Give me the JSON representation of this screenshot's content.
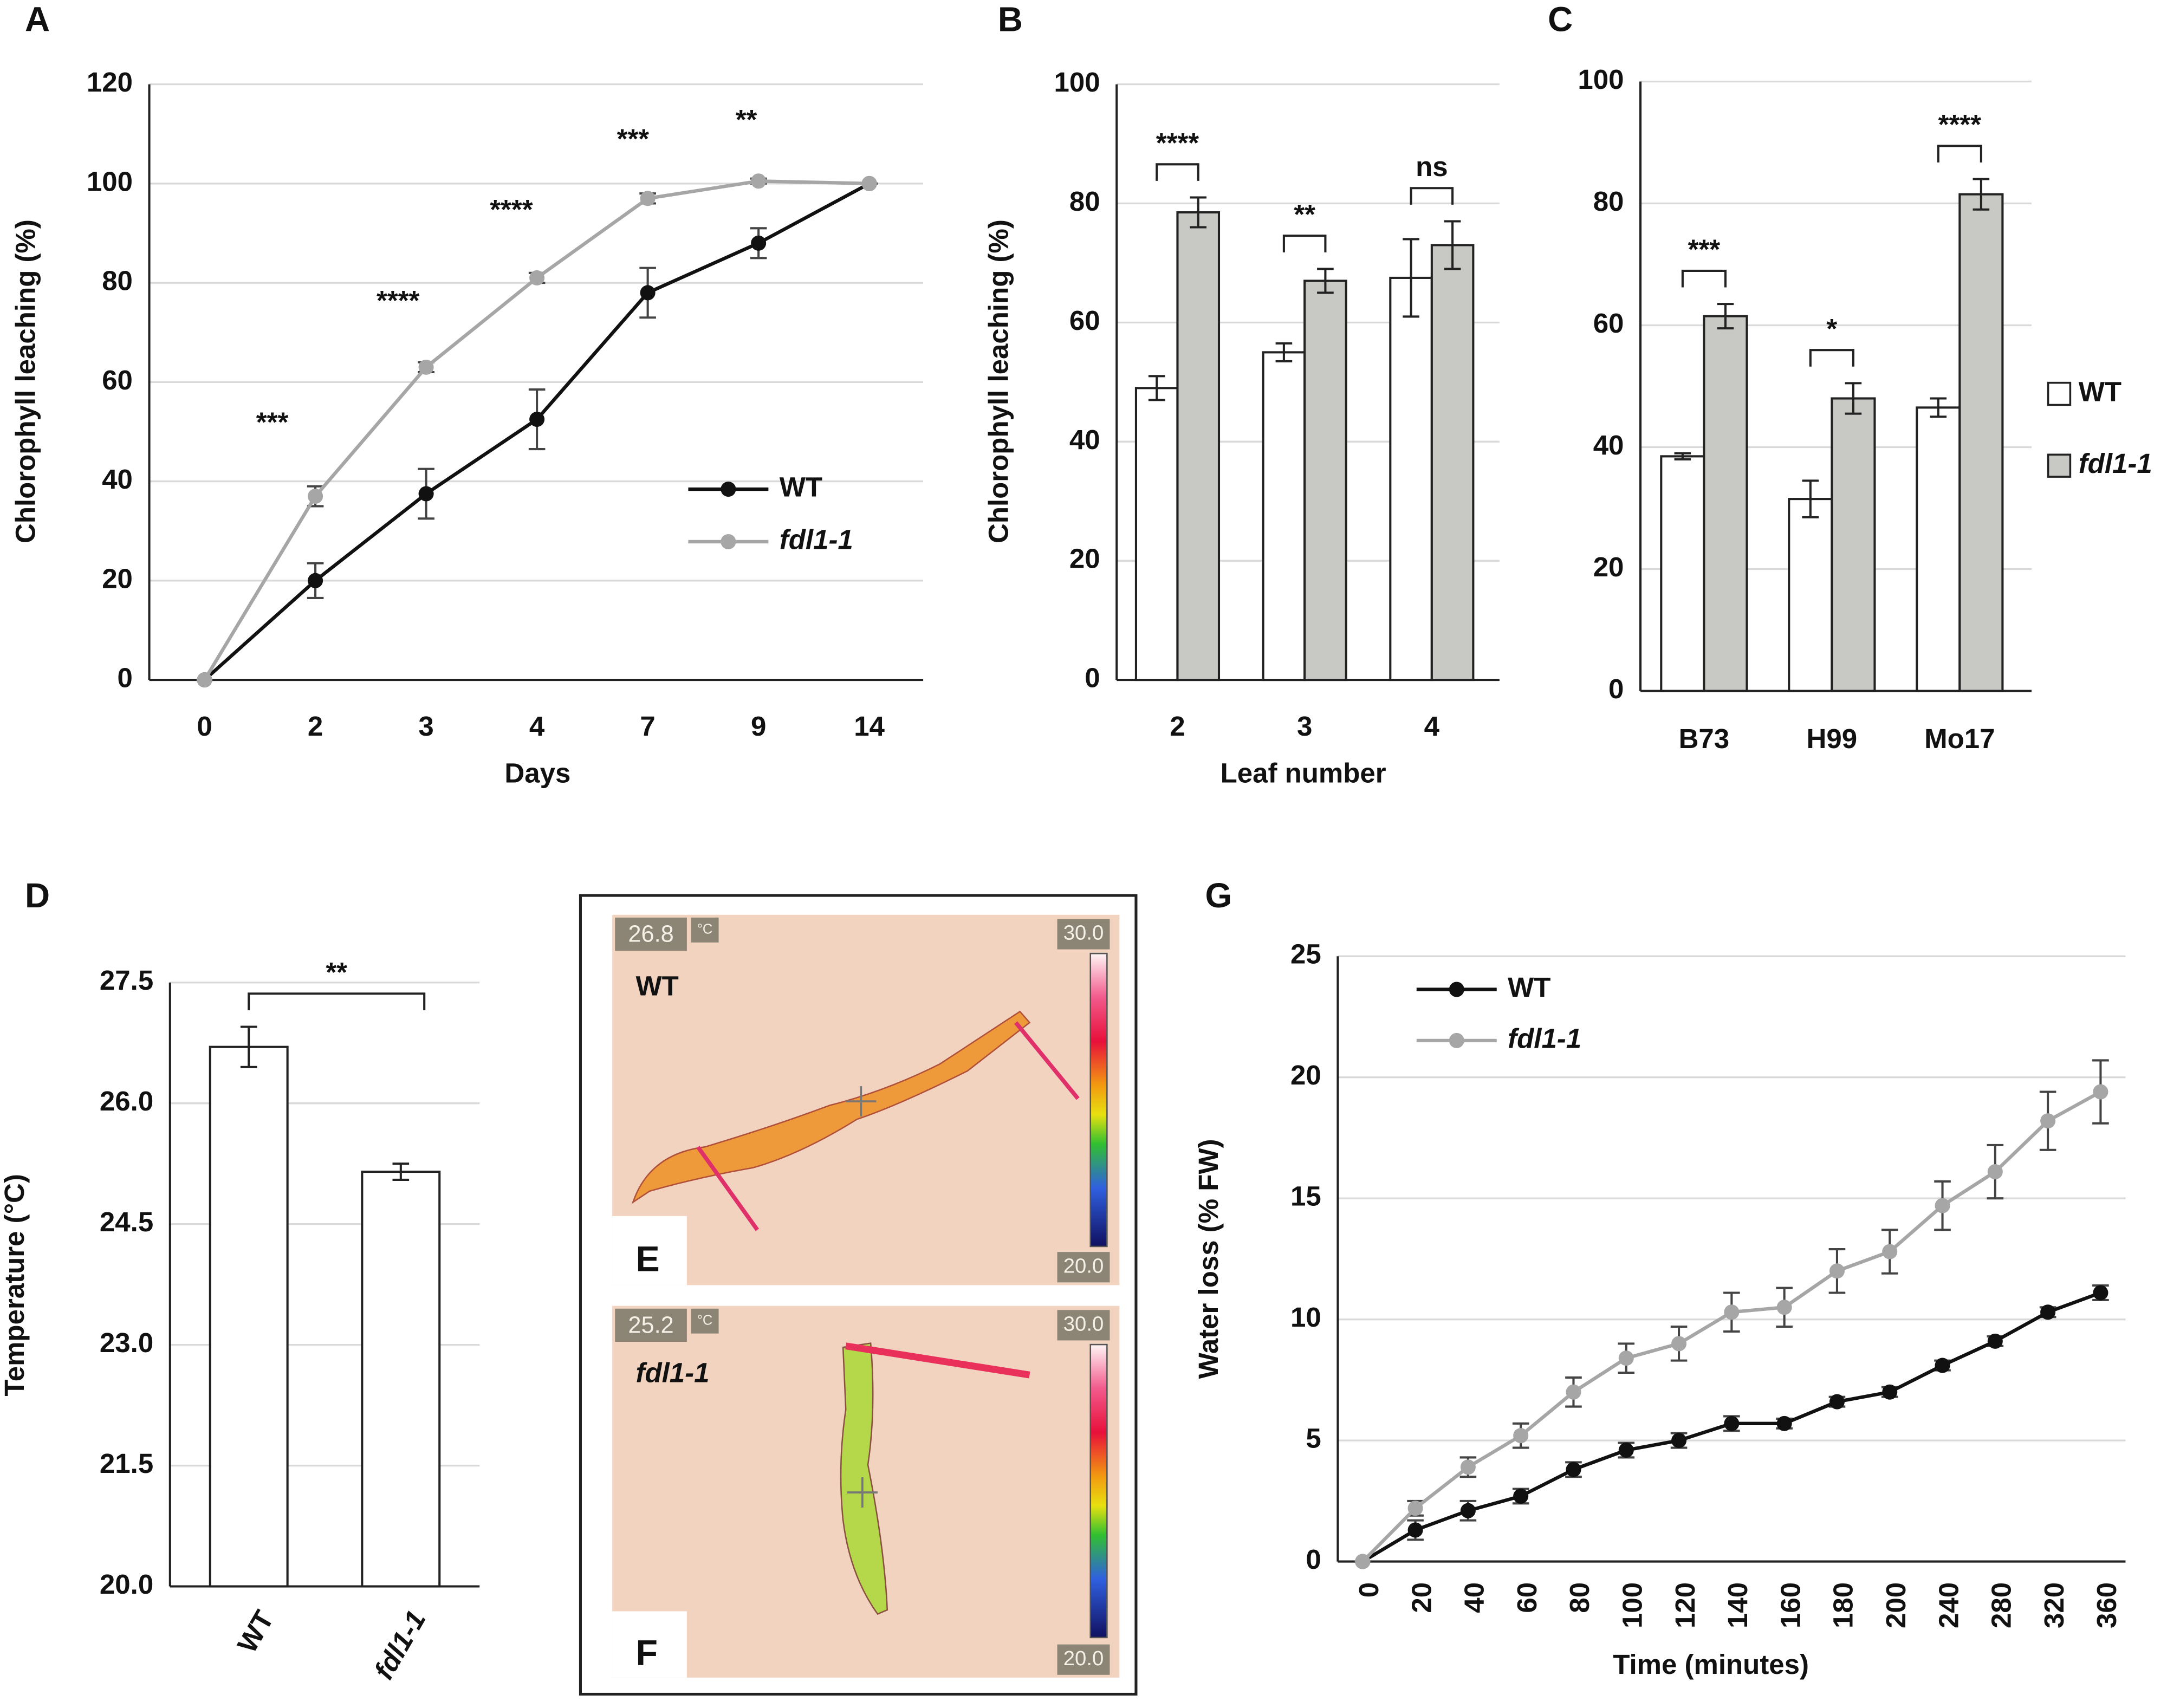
{
  "chart_data": [
    {
      "type": "line",
      "panel": "A",
      "categories": [
        "0",
        "2",
        "3",
        "4",
        "7",
        "9",
        "14"
      ],
      "x_label": "Days",
      "y_label": "Chlorophyll leaching (%)",
      "ylim": [
        0,
        120
      ],
      "yticks": [
        0,
        20,
        40,
        60,
        80,
        100,
        120
      ],
      "grid": true,
      "legend": "lower right",
      "series": [
        {
          "name": "WT",
          "color": "#111111",
          "values": [
            0,
            20,
            37.5,
            52.5,
            78,
            88,
            100
          ],
          "errors": [
            0,
            3.5,
            5,
            6,
            5,
            3,
            0
          ]
        },
        {
          "name": "fdl1-1",
          "color": "#a6a6a6",
          "values": [
            0,
            37,
            63,
            81,
            97,
            100.5,
            100
          ],
          "errors": [
            0,
            2,
            1,
            1,
            1,
            0.5,
            0
          ]
        }
      ],
      "annotations": [
        "***",
        "****",
        "****",
        "***",
        "**"
      ]
    },
    {
      "type": "bar",
      "panel": "B",
      "categories": [
        "2",
        "3",
        "4"
      ],
      "x_label": "Leaf number",
      "y_label": "Chlorophyll leaching (%)",
      "ylim": [
        0,
        100
      ],
      "yticks": [
        0,
        20,
        40,
        60,
        80,
        100
      ],
      "grid": true,
      "series": [
        {
          "color": "#ffffff",
          "values": [
            49,
            55,
            67.5
          ],
          "errors": [
            2,
            1.5,
            6.5
          ]
        },
        {
          "color": "#c8c9c5",
          "values": [
            78.5,
            67,
            73
          ],
          "errors": [
            2.5,
            2,
            4
          ]
        }
      ],
      "significance": [
        "****",
        "**",
        "ns"
      ]
    },
    {
      "type": "bar",
      "panel": "C",
      "categories": [
        "B73",
        "H99",
        "Mo17"
      ],
      "ylim": [
        0,
        100
      ],
      "yticks": [
        0,
        20,
        40,
        60,
        80,
        100
      ],
      "grid": true,
      "legend": "right",
      "series": [
        {
          "name": "WT",
          "color": "#ffffff",
          "values": [
            38.5,
            31.5,
            46.5
          ],
          "errors": [
            0.5,
            3,
            1.5
          ]
        },
        {
          "name": "fdl1-1",
          "color": "#c8c9c5",
          "values": [
            61.5,
            48,
            81.5
          ],
          "errors": [
            2,
            2.5,
            2.5
          ]
        }
      ],
      "significance": [
        "***",
        "*",
        "****"
      ]
    },
    {
      "type": "bar",
      "panel": "D",
      "categories": [
        "WT",
        "fdl1-1"
      ],
      "y_label": "Temperature (°C)",
      "ylim": [
        20,
        27.5
      ],
      "yticks": [
        {
          "value": 20,
          "label": "20.0"
        },
        21.5,
        {
          "value": 23,
          "label": "23.0"
        },
        24.5,
        {
          "value": 26,
          "label": "26.0"
        },
        27.5
      ],
      "grid": true,
      "color": "#ffffff",
      "values": [
        26.7,
        25.15
      ],
      "errors": [
        0.25,
        0.1
      ],
      "significance": [
        "**"
      ]
    },
    {
      "type": "line",
      "panel": "G",
      "categories": [
        "0",
        "20",
        "40",
        "60",
        "80",
        "100",
        "120",
        "140",
        "160",
        "180",
        "200",
        "240",
        "280",
        "320",
        "360"
      ],
      "x_label": "Time (minutes)",
      "y_label": "Water loss (% FW)",
      "ylim": [
        0,
        25
      ],
      "yticks": [
        0,
        5,
        10,
        15,
        20,
        25
      ],
      "grid": true,
      "legend": "upper left",
      "series": [
        {
          "name": "WT",
          "color": "#111111",
          "values": [
            0,
            1.3,
            2.1,
            2.7,
            3.8,
            4.6,
            5.0,
            5.7,
            5.7,
            6.6,
            7.0,
            8.1,
            9.1,
            10.3,
            11.1
          ],
          "errors": [
            0,
            0.4,
            0.4,
            0.3,
            0.3,
            0.3,
            0.3,
            0.3,
            0.2,
            0.2,
            0.2,
            0.2,
            0.2,
            0.2,
            0.3
          ]
        },
        {
          "name": "fdl1-1",
          "color": "#a6a6a6",
          "values": [
            0,
            2.2,
            3.9,
            5.2,
            7.0,
            8.4,
            9.0,
            10.3,
            10.5,
            12.0,
            12.8,
            14.7,
            16.1,
            18.2,
            19.4
          ],
          "errors": [
            0,
            0.3,
            0.4,
            0.5,
            0.6,
            0.6,
            0.7,
            0.8,
            0.8,
            0.9,
            0.9,
            1.0,
            1.1,
            1.2,
            1.3
          ]
        }
      ]
    }
  ],
  "images": [
    {
      "label": "E",
      "genotype": "WT",
      "spot_temperature": "26.8",
      "unit": "°C",
      "scale_max": "30.0",
      "scale_min": "20.0"
    },
    {
      "label": "F",
      "genotype": "fdl1-1",
      "spot_temperature": "25.2",
      "unit": "°C",
      "scale_max": "30.0",
      "scale_min": "20.0"
    }
  ]
}
